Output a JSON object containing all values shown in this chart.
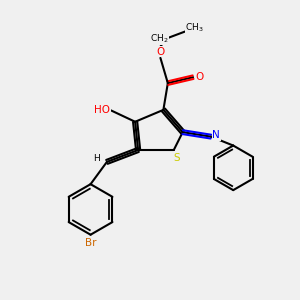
{
  "bg_color": "#f0f0f0",
  "bond_color": "#000000",
  "atom_colors": {
    "O": "#ff0000",
    "S": "#cccc00",
    "N": "#0000ff",
    "Br": "#cc6600",
    "H": "#000000",
    "C": "#000000"
  },
  "title": ""
}
